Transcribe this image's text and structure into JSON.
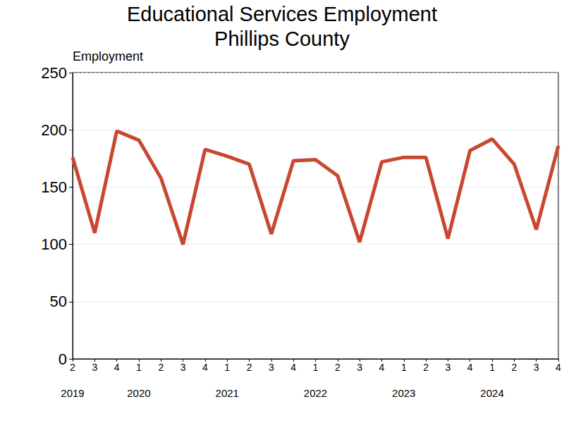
{
  "chart_data": {
    "type": "line",
    "title": "Educational Services Employment",
    "subtitle": "Phillips County",
    "y_label": "Employment",
    "categories": [
      "2\n2019",
      "3",
      "4",
      "1\n2020",
      "2",
      "3",
      "4",
      "1\n2021",
      "2",
      "3",
      "4",
      "1\n2022",
      "2",
      "3",
      "4",
      "1\n2023",
      "2",
      "3",
      "4",
      "1\n2024",
      "2",
      "3",
      "4"
    ],
    "values": [
      176,
      110,
      199,
      191,
      158,
      100,
      183,
      177,
      170,
      109,
      173,
      174,
      160,
      102,
      172,
      176,
      176,
      105,
      182,
      192,
      170,
      113,
      186
    ],
    "color": "#c9472f",
    "ylim": [
      0,
      250
    ],
    "yticks": [
      0,
      50,
      100,
      150,
      200,
      250
    ],
    "grid": true
  }
}
